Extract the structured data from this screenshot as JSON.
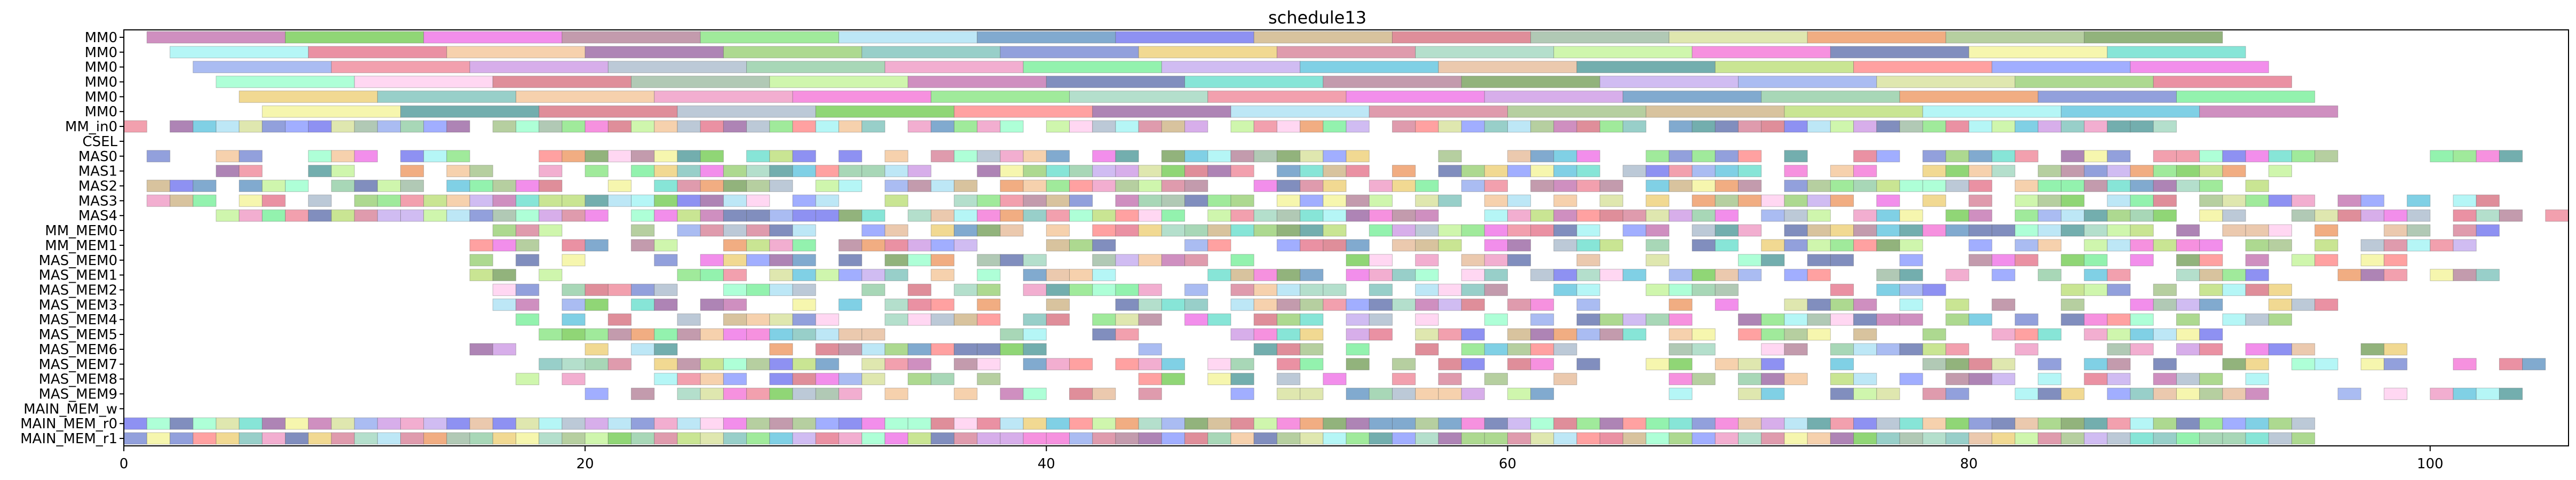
{
  "chart_data": {
    "type": "gantt",
    "title": "schedule13",
    "xlabel": "",
    "ylabel": "",
    "xlim": [
      0,
      106
    ],
    "x_ticks": [
      0,
      20,
      40,
      60,
      80,
      100
    ],
    "grid": false,
    "legend": "none",
    "rows": [
      "MM0",
      "MM0",
      "MM0",
      "MM0",
      "MM0",
      "MM0",
      "MM_in0",
      "CSEL",
      "MAS0",
      "MAS1",
      "MAS2",
      "MAS3",
      "MAS4",
      "MM_MEM0",
      "MM_MEM1",
      "MAS_MEM0",
      "MAS_MEM1",
      "MAS_MEM2",
      "MAS_MEM3",
      "MAS_MEM4",
      "MAS_MEM5",
      "MAS_MEM6",
      "MAS_MEM7",
      "MAS_MEM8",
      "MAS_MEM9",
      "MAIN_MEM_w",
      "MAIN_MEM_r0",
      "MAIN_MEM_r1"
    ],
    "palette": [
      "#c77bb5",
      "#7ccf5e",
      "#f07ae8",
      "#b9899f",
      "#8fe68a",
      "#b1e3f5",
      "#6b9bc7",
      "#7a7ef0",
      "#d1b88d",
      "#d97a88",
      "#a3bfa8",
      "#d9e3a1",
      "#ee9f6c",
      "#a9c78f",
      "#7fa665",
      "#a8f5f5",
      "#e67e93",
      "#f5c99f",
      "#a06ea8",
      "#9fd27c",
      "#86c7c0",
      "#7f8fd6",
      "#efd27f",
      "#d9899f",
      "#a7d9c3",
      "#c7f59f",
      "#f57ed9",
      "#6b7ab3",
      "#f5f5a0",
      "#72e0d0",
      "#9bb0f0",
      "#f08fa0",
      "#d0a0e6",
      "#b0c0d0",
      "#99d0aa",
      "#f0a0c8",
      "#80f0a0",
      "#c8b0f0",
      "#6ac8e0",
      "#e8c0a0",
      "#5aa0a0",
      "#c0e080",
      "#ff9090",
      "#90a0ff",
      "#a0ffd0",
      "#ffd0f0"
    ],
    "tasks": [
      {
        "row": 0,
        "start": 1,
        "end": 7,
        "color": 0
      },
      {
        "row": 0,
        "start": 7,
        "end": 13,
        "color": 1
      },
      {
        "row": 0,
        "start": 13,
        "end": 19,
        "color": 2
      },
      {
        "row": 0,
        "start": 19,
        "end": 25,
        "color": 3
      },
      {
        "row": 0,
        "start": 25,
        "end": 31,
        "color": 4
      },
      {
        "row": 0,
        "start": 31,
        "end": 37,
        "color": 5
      },
      {
        "row": 0,
        "start": 37,
        "end": 43,
        "color": 6
      },
      {
        "row": 0,
        "start": 43,
        "end": 49,
        "color": 7
      },
      {
        "row": 0,
        "start": 49,
        "end": 55,
        "color": 8
      },
      {
        "row": 0,
        "start": 55,
        "end": 61,
        "color": 9
      },
      {
        "row": 0,
        "start": 61,
        "end": 67,
        "color": 10
      },
      {
        "row": 0,
        "start": 67,
        "end": 73,
        "color": 11
      },
      {
        "row": 0,
        "start": 73,
        "end": 79,
        "color": 12
      },
      {
        "row": 0,
        "start": 79,
        "end": 85,
        "color": 13
      },
      {
        "row": 0,
        "start": 85,
        "end": 91,
        "color": 14
      },
      {
        "row": 1,
        "start": 2,
        "end": 8,
        "color": 15
      },
      {
        "row": 1,
        "start": 8,
        "end": 14,
        "color": 16
      },
      {
        "row": 1,
        "start": 14,
        "end": 20,
        "color": 17
      },
      {
        "row": 1,
        "start": 20,
        "end": 26,
        "color": 18
      },
      {
        "row": 1,
        "start": 26,
        "end": 32,
        "color": 19
      },
      {
        "row": 1,
        "start": 32,
        "end": 38,
        "color": 20
      },
      {
        "row": 1,
        "start": 38,
        "end": 44,
        "color": 21
      },
      {
        "row": 1,
        "start": 44,
        "end": 50,
        "color": 22
      },
      {
        "row": 1,
        "start": 50,
        "end": 56,
        "color": 23
      },
      {
        "row": 1,
        "start": 56,
        "end": 62,
        "color": 24
      },
      {
        "row": 1,
        "start": 62,
        "end": 68,
        "color": 25
      },
      {
        "row": 1,
        "start": 68,
        "end": 74,
        "color": 26
      },
      {
        "row": 1,
        "start": 74,
        "end": 80,
        "color": 27
      },
      {
        "row": 1,
        "start": 80,
        "end": 86,
        "color": 28
      },
      {
        "row": 1,
        "start": 86,
        "end": 92,
        "color": 29
      },
      {
        "row": 2,
        "start": 3,
        "end": 9,
        "color": 30
      },
      {
        "row": 2,
        "start": 9,
        "end": 15,
        "color": 31
      },
      {
        "row": 2,
        "start": 15,
        "end": 21,
        "color": 32
      },
      {
        "row": 2,
        "start": 21,
        "end": 27,
        "color": 33
      },
      {
        "row": 2,
        "start": 27,
        "end": 33,
        "color": 34
      },
      {
        "row": 2,
        "start": 33,
        "end": 39,
        "color": 35
      },
      {
        "row": 2,
        "start": 39,
        "end": 45,
        "color": 36
      },
      {
        "row": 2,
        "start": 45,
        "end": 51,
        "color": 37
      },
      {
        "row": 2,
        "start": 51,
        "end": 57,
        "color": 38
      },
      {
        "row": 2,
        "start": 57,
        "end": 63,
        "color": 39
      },
      {
        "row": 2,
        "start": 63,
        "end": 69,
        "color": 40
      },
      {
        "row": 2,
        "start": 69,
        "end": 75,
        "color": 41
      },
      {
        "row": 2,
        "start": 75,
        "end": 81,
        "color": 42
      },
      {
        "row": 2,
        "start": 81,
        "end": 87,
        "color": 43
      },
      {
        "row": 2,
        "start": 87,
        "end": 93,
        "color": 2
      },
      {
        "row": 3,
        "start": 4,
        "end": 10,
        "color": 44
      },
      {
        "row": 3,
        "start": 10,
        "end": 16,
        "color": 45
      },
      {
        "row": 3,
        "start": 16,
        "end": 22,
        "color": 9
      },
      {
        "row": 3,
        "start": 22,
        "end": 28,
        "color": 10
      },
      {
        "row": 3,
        "start": 28,
        "end": 34,
        "color": 25
      },
      {
        "row": 3,
        "start": 34,
        "end": 40,
        "color": 0
      },
      {
        "row": 3,
        "start": 40,
        "end": 46,
        "color": 27
      },
      {
        "row": 3,
        "start": 46,
        "end": 52,
        "color": 29
      },
      {
        "row": 3,
        "start": 52,
        "end": 58,
        "color": 3
      },
      {
        "row": 3,
        "start": 58,
        "end": 64,
        "color": 14
      },
      {
        "row": 3,
        "start": 64,
        "end": 70,
        "color": 37
      },
      {
        "row": 3,
        "start": 70,
        "end": 76,
        "color": 30
      },
      {
        "row": 3,
        "start": 76,
        "end": 82,
        "color": 11
      },
      {
        "row": 3,
        "start": 82,
        "end": 88,
        "color": 19
      },
      {
        "row": 3,
        "start": 88,
        "end": 94,
        "color": 16
      },
      {
        "row": 4,
        "start": 5,
        "end": 11,
        "color": 22
      },
      {
        "row": 4,
        "start": 11,
        "end": 17,
        "color": 20
      },
      {
        "row": 4,
        "start": 17,
        "end": 23,
        "color": 17
      },
      {
        "row": 4,
        "start": 23,
        "end": 29,
        "color": 35
      },
      {
        "row": 4,
        "start": 29,
        "end": 35,
        "color": 26
      },
      {
        "row": 4,
        "start": 35,
        "end": 41,
        "color": 4
      },
      {
        "row": 4,
        "start": 41,
        "end": 47,
        "color": 24
      },
      {
        "row": 4,
        "start": 47,
        "end": 53,
        "color": 31
      },
      {
        "row": 4,
        "start": 53,
        "end": 59,
        "color": 2
      },
      {
        "row": 4,
        "start": 59,
        "end": 65,
        "color": 32
      },
      {
        "row": 4,
        "start": 65,
        "end": 71,
        "color": 6
      },
      {
        "row": 4,
        "start": 71,
        "end": 77,
        "color": 34
      },
      {
        "row": 4,
        "start": 77,
        "end": 83,
        "color": 12
      },
      {
        "row": 4,
        "start": 83,
        "end": 89,
        "color": 21
      },
      {
        "row": 4,
        "start": 89,
        "end": 95,
        "color": 36
      },
      {
        "row": 5,
        "start": 6,
        "end": 12,
        "color": 28
      },
      {
        "row": 5,
        "start": 12,
        "end": 18,
        "color": 40
      },
      {
        "row": 5,
        "start": 18,
        "end": 24,
        "color": 9
      },
      {
        "row": 5,
        "start": 24,
        "end": 30,
        "color": 33
      },
      {
        "row": 5,
        "start": 30,
        "end": 36,
        "color": 1
      },
      {
        "row": 5,
        "start": 36,
        "end": 42,
        "color": 42
      },
      {
        "row": 5,
        "start": 42,
        "end": 48,
        "color": 18
      },
      {
        "row": 5,
        "start": 48,
        "end": 54,
        "color": 5
      },
      {
        "row": 5,
        "start": 54,
        "end": 60,
        "color": 23
      },
      {
        "row": 5,
        "start": 60,
        "end": 66,
        "color": 13
      },
      {
        "row": 5,
        "start": 66,
        "end": 72,
        "color": 8
      },
      {
        "row": 5,
        "start": 72,
        "end": 78,
        "color": 41
      },
      {
        "row": 5,
        "start": 78,
        "end": 84,
        "color": 15
      },
      {
        "row": 5,
        "start": 84,
        "end": 90,
        "color": 38
      },
      {
        "row": 5,
        "start": 90,
        "end": 96,
        "color": 0
      }
    ],
    "short_task_rows": {
      "MM_in0": {
        "row": 6,
        "start": 0,
        "end": 90,
        "fill": 0.92
      },
      "MAS0": {
        "row": 8,
        "start": 0,
        "end": 104,
        "fill": 0.72
      },
      "MAS1": {
        "row": 9,
        "start": 1,
        "end": 94,
        "fill": 0.8
      },
      "MAS2": {
        "row": 10,
        "start": 1,
        "end": 95,
        "fill": 0.8
      },
      "MAS3": {
        "row": 11,
        "start": 1,
        "end": 103,
        "fill": 0.72
      },
      "MAS4": {
        "row": 12,
        "start": 1,
        "end": 106,
        "fill": 0.8
      },
      "MM_MEM0": {
        "row": 13,
        "start": 15,
        "end": 103,
        "fill": 0.8
      },
      "MM_MEM1": {
        "row": 14,
        "start": 15,
        "end": 102,
        "fill": 0.75
      },
      "MAS_MEM0": {
        "row": 15,
        "start": 15,
        "end": 102,
        "fill": 0.65
      },
      "MAS_MEM1": {
        "row": 16,
        "start": 15,
        "end": 103,
        "fill": 0.7
      },
      "MAS_MEM2": {
        "row": 17,
        "start": 16,
        "end": 94,
        "fill": 0.7
      },
      "MAS_MEM3": {
        "row": 18,
        "start": 16,
        "end": 96,
        "fill": 0.65
      },
      "MAS_MEM4": {
        "row": 19,
        "start": 16,
        "end": 94,
        "fill": 0.65
      },
      "MAS_MEM5": {
        "row": 20,
        "start": 16,
        "end": 92,
        "fill": 0.55
      },
      "MAS_MEM6": {
        "row": 21,
        "start": 15,
        "end": 99,
        "fill": 0.55
      },
      "MAS_MEM7": {
        "row": 22,
        "start": 16,
        "end": 105,
        "fill": 0.6
      },
      "MAS_MEM8": {
        "row": 23,
        "start": 16,
        "end": 93,
        "fill": 0.55
      },
      "MAS_MEM9": {
        "row": 24,
        "start": 17,
        "end": 104,
        "fill": 0.55
      },
      "MAIN_MEM_r0": {
        "row": 26,
        "start": 0,
        "end": 95,
        "fill": 1.0
      },
      "MAIN_MEM_r1": {
        "row": 27,
        "start": 0,
        "end": 95,
        "fill": 1.0
      }
    }
  }
}
